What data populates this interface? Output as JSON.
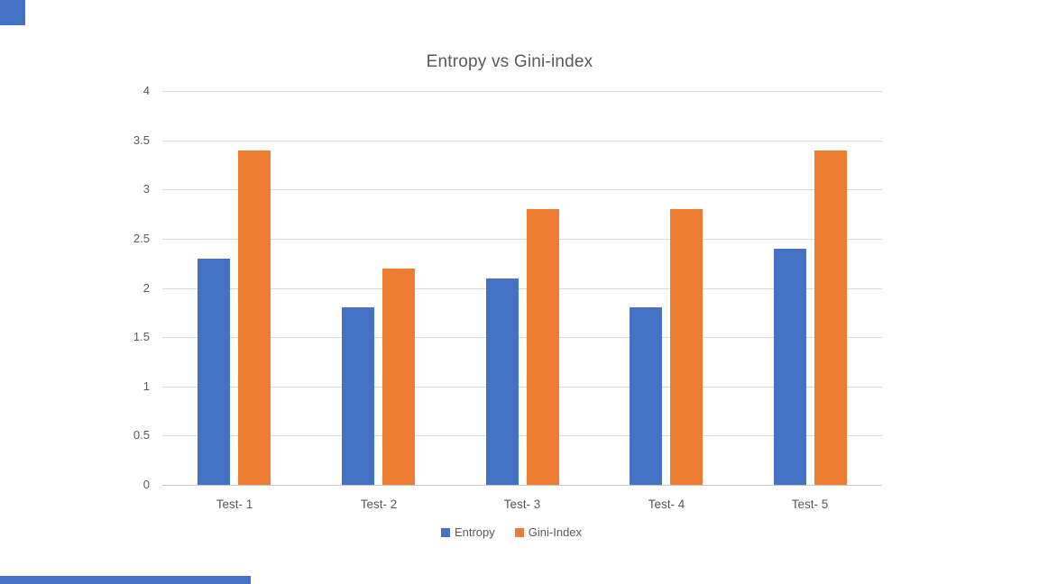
{
  "page": {
    "background": "#ffffff"
  },
  "decorations": {
    "corner_square_color": "#4472c4",
    "footer_bar_color": "#4472c4"
  },
  "chart_data": {
    "type": "bar",
    "title": "Entropy vs Gini-index",
    "categories": [
      "Test- 1",
      "Test- 2",
      "Test- 3",
      "Test- 4",
      "Test-  5"
    ],
    "series": [
      {
        "name": "Entropy",
        "color": "#4472c4",
        "values": [
          2.3,
          1.8,
          2.1,
          1.8,
          2.4
        ]
      },
      {
        "name": "Gini-Index",
        "color": "#ed7d31",
        "values": [
          3.4,
          2.2,
          2.8,
          2.8,
          3.4
        ]
      }
    ],
    "xlabel": "",
    "ylabel": "",
    "ylim": [
      0,
      4
    ],
    "ytick_interval": 0.5,
    "ytick_labels": [
      "4",
      "3.5",
      "3",
      "2.5",
      "2",
      "1.5",
      "1",
      "0.5",
      "0"
    ],
    "grid": true,
    "gridline_color": "#d9d9d9",
    "text_color": "#595959",
    "legend_position": "bottom"
  }
}
